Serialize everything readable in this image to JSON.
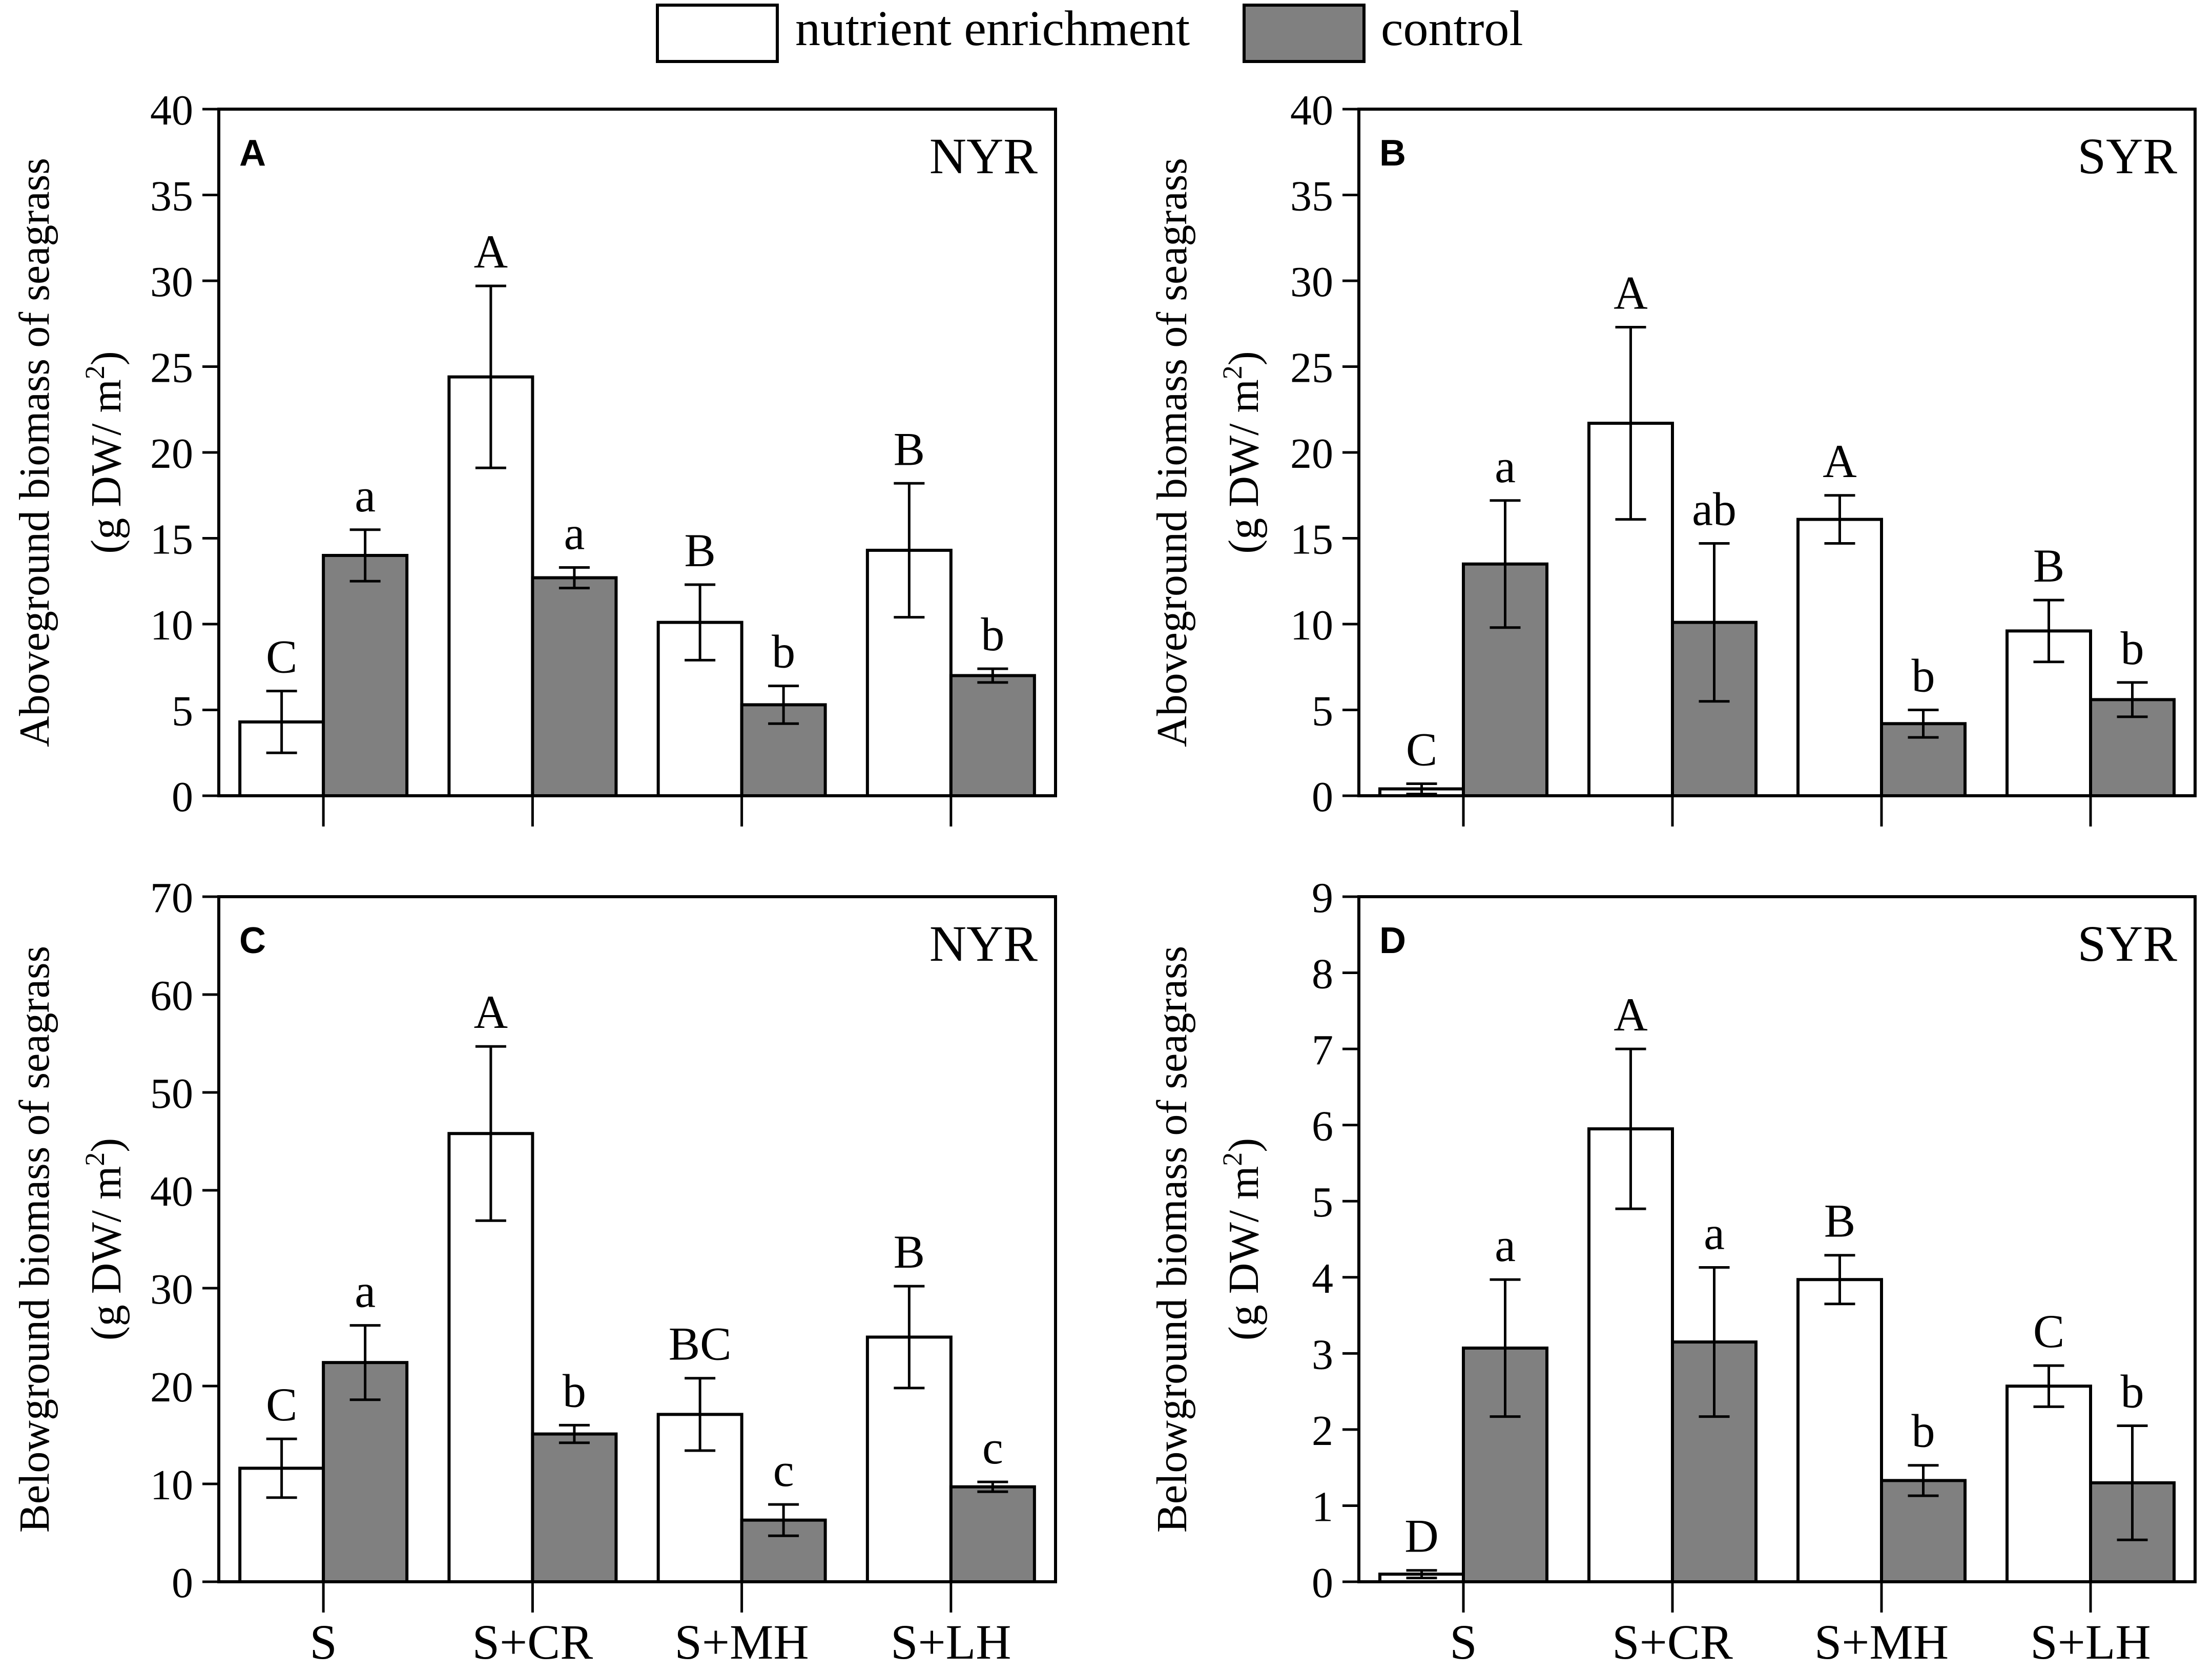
{
  "legend": {
    "entries": [
      {
        "label": "nutrient enrichment",
        "color": "#ffffff"
      },
      {
        "label": "control",
        "color": "#808080"
      }
    ],
    "placement": "top-center"
  },
  "chart_data": [
    {
      "type": "bar",
      "panel_label": "A",
      "site": "NYR",
      "ylabel_line1": "Aboveground biomass of seagrass",
      "ylabel_line2_prefix": "(g DW/ m",
      "ylabel_sup": "2",
      "ylabel_line2_suffix": ")",
      "ylim": [
        0,
        40
      ],
      "yticks": [
        0,
        5,
        10,
        15,
        20,
        25,
        30,
        35,
        40
      ],
      "categories": [
        "S",
        "S+CR",
        "S+MH",
        "S+LH"
      ],
      "show_categories": false,
      "series": [
        {
          "name": "nutrient enrichment",
          "color": "#ffffff",
          "values": [
            4.3,
            24.4,
            10.1,
            14.3
          ],
          "errors": [
            1.8,
            5.3,
            2.2,
            3.9
          ],
          "letters": [
            "C",
            "A",
            "B",
            "B"
          ]
        },
        {
          "name": "control",
          "color": "#808080",
          "values": [
            14.0,
            12.7,
            5.3,
            7.0
          ],
          "errors": [
            1.5,
            0.6,
            1.1,
            0.4
          ],
          "letters": [
            "a",
            "a",
            "b",
            "b"
          ]
        }
      ]
    },
    {
      "type": "bar",
      "panel_label": "B",
      "site": "SYR",
      "ylabel_line1": "Aboveground biomass of seagrass",
      "ylabel_line2_prefix": "(g DW/ m",
      "ylabel_sup": "2",
      "ylabel_line2_suffix": ")",
      "ylim": [
        0,
        40
      ],
      "yticks": [
        0,
        5,
        10,
        15,
        20,
        25,
        30,
        35,
        40
      ],
      "categories": [
        "S",
        "S+CR",
        "S+MH",
        "S+LH"
      ],
      "show_categories": false,
      "series": [
        {
          "name": "nutrient enrichment",
          "color": "#ffffff",
          "values": [
            0.4,
            21.7,
            16.1,
            9.6
          ],
          "errors": [
            0.3,
            5.6,
            1.4,
            1.8
          ],
          "letters": [
            "C",
            "A",
            "A",
            "B"
          ]
        },
        {
          "name": "control",
          "color": "#808080",
          "values": [
            13.5,
            10.1,
            4.2,
            5.6
          ],
          "errors": [
            3.7,
            4.6,
            0.8,
            1.0
          ],
          "letters": [
            "a",
            "ab",
            "b",
            "b"
          ]
        }
      ]
    },
    {
      "type": "bar",
      "panel_label": "C",
      "site": "NYR",
      "ylabel_line1": "Belowground biomass of seagrass",
      "ylabel_line2_prefix": "(g DW/ m",
      "ylabel_sup": "2",
      "ylabel_line2_suffix": ")",
      "ylim": [
        0,
        70
      ],
      "yticks": [
        0,
        10,
        20,
        30,
        40,
        50,
        60,
        70
      ],
      "categories": [
        "S",
        "S+CR",
        "S+MH",
        "S+LH"
      ],
      "show_categories": true,
      "series": [
        {
          "name": "nutrient enrichment",
          "color": "#ffffff",
          "values": [
            11.6,
            45.8,
            17.1,
            25.0
          ],
          "errors": [
            3.0,
            8.9,
            3.7,
            5.2
          ],
          "letters": [
            "C",
            "A",
            "BC",
            "B"
          ]
        },
        {
          "name": "control",
          "color": "#808080",
          "values": [
            22.4,
            15.1,
            6.3,
            9.7
          ],
          "errors": [
            3.8,
            0.9,
            1.6,
            0.5
          ],
          "letters": [
            "a",
            "b",
            "c",
            "c"
          ]
        }
      ]
    },
    {
      "type": "bar",
      "panel_label": "D",
      "site": "SYR",
      "ylabel_line1": "Belowground biomass of seagrass",
      "ylabel_line2_prefix": "(g DW/ m",
      "ylabel_sup": "2",
      "ylabel_line2_suffix": ")",
      "ylim": [
        0,
        9
      ],
      "yticks": [
        0,
        1,
        2,
        3,
        4,
        5,
        6,
        7,
        8,
        9
      ],
      "categories": [
        "S",
        "S+CR",
        "S+MH",
        "S+LH"
      ],
      "show_categories": true,
      "series": [
        {
          "name": "nutrient enrichment",
          "color": "#ffffff",
          "values": [
            0.1,
            5.95,
            3.97,
            2.57
          ],
          "errors": [
            0.05,
            1.05,
            0.32,
            0.27
          ],
          "letters": [
            "D",
            "A",
            "B",
            "C"
          ]
        },
        {
          "name": "control",
          "color": "#808080",
          "values": [
            3.07,
            3.15,
            1.33,
            1.3
          ],
          "errors": [
            0.9,
            0.98,
            0.2,
            0.75
          ],
          "letters": [
            "a",
            "a",
            "b",
            "b"
          ]
        }
      ]
    }
  ]
}
